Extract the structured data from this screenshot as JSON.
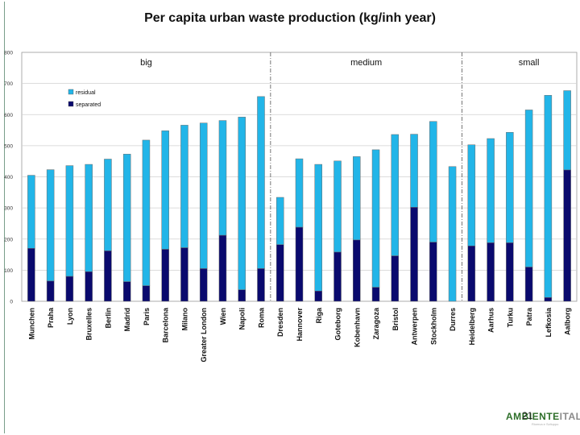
{
  "title": "Per capita urban waste production (kg/inh year)",
  "page_number": "21",
  "logo": {
    "part1": "AMBIENTE",
    "part2": "ITALIA",
    "tagline": "Ricerca e Sviluppo"
  },
  "colors": {
    "residual": "#22b5e8",
    "separated": "#0a0a6e",
    "grid": "#d0d0d0"
  },
  "chart_data": {
    "type": "bar",
    "stacked": true,
    "title": "Per capita urban waste production (kg/inh year)",
    "ylim": [
      0,
      800
    ],
    "yticks": [
      "0",
      "100",
      "200",
      "300",
      "400",
      "500",
      "600",
      "700",
      "800"
    ],
    "ytick_values": [
      0,
      100,
      200,
      300,
      400,
      500,
      600,
      700,
      800
    ],
    "legend": [
      "residual",
      "separated"
    ],
    "legend_position": "top-left",
    "groups": [
      {
        "label": "big",
        "start": 0,
        "end": 12
      },
      {
        "label": "medium",
        "start": 13,
        "end": 22
      },
      {
        "label": "small",
        "start": 23,
        "end": 29
      }
    ],
    "categories": [
      "Munchen",
      "Praha",
      "Lyon",
      "Bruxelles",
      "Berlin",
      "Madrid",
      "Paris",
      "Barcelona",
      "Milano",
      "Greater London",
      "Wien",
      "Napoli",
      "Roma",
      "Dresden",
      "Hannover",
      "Riga",
      "Goteborg",
      "Kobenhavn",
      "Zaragoza",
      "Bristol",
      "Antwerpen",
      "Stockholm",
      "Durres",
      "Heidelberg",
      "Aarhus",
      "Turku",
      "Patra",
      "Lefkosia",
      "Aalborg"
    ],
    "series": [
      {
        "name": "separated",
        "values": [
          170,
          65,
          80,
          95,
          162,
          63,
          50,
          167,
          172,
          105,
          212,
          37,
          105,
          182,
          238,
          33,
          158,
          197,
          45,
          146,
          302,
          190,
          0,
          178,
          188,
          188,
          110,
          12,
          422
        ]
      },
      {
        "name": "residual",
        "values": [
          235,
          358,
          356,
          345,
          295,
          410,
          468,
          381,
          394,
          468,
          369,
          555,
          553,
          152,
          220,
          407,
          293,
          268,
          442,
          390,
          235,
          388,
          433,
          325,
          335,
          355,
          505,
          650,
          255
        ]
      }
    ]
  }
}
